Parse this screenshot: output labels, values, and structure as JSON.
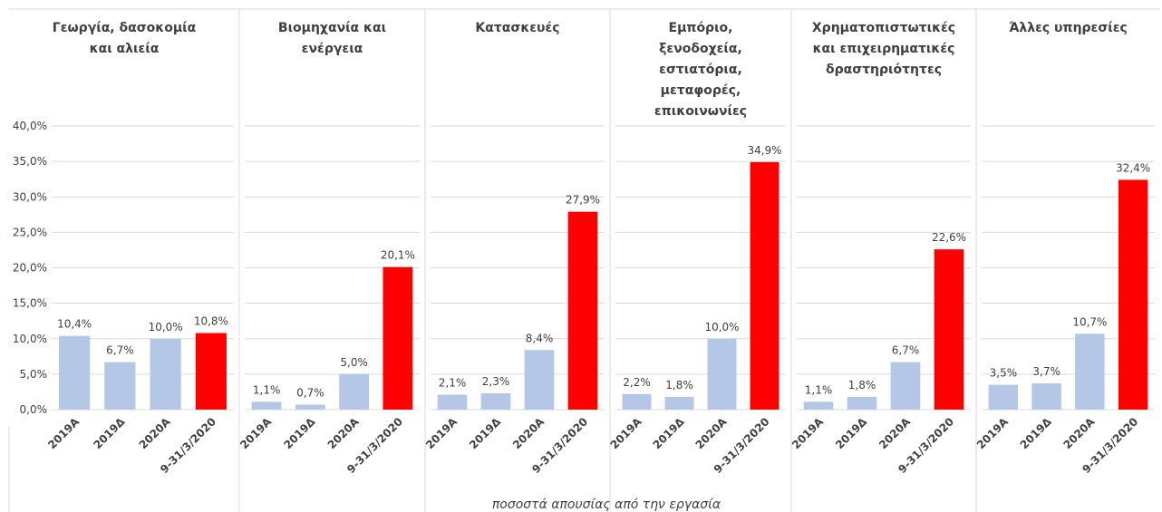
{
  "chart_data": {
    "type": "bar",
    "x_label": "ποσοστά απουσίας από την εργασία",
    "ylim": [
      0,
      40
    ],
    "yticks": [
      {
        "value": 0,
        "label": "0,0%"
      },
      {
        "value": 5,
        "label": "5,0%"
      },
      {
        "value": 10,
        "label": "10,0%"
      },
      {
        "value": 15,
        "label": "15,0%"
      },
      {
        "value": 20,
        "label": "20,0%"
      },
      {
        "value": 25,
        "label": "25,0%"
      },
      {
        "value": 30,
        "label": "30,0%"
      },
      {
        "value": 35,
        "label": "35,0%"
      },
      {
        "value": 40,
        "label": "40,0%"
      }
    ],
    "grid": true,
    "categories": [
      "2019Α",
      "2019Δ",
      "2020Α",
      "9-31/3/2020"
    ],
    "colors": [
      "#b4c7e7",
      "#b4c7e7",
      "#b4c7e7",
      "#ff0000"
    ],
    "panels": [
      {
        "title": [
          "Γεωργία, δασοκομία",
          "και αλιεία"
        ],
        "values": [
          10.4,
          6.7,
          10.0,
          10.8
        ],
        "value_labels": [
          "10,4%",
          "6,7%",
          "10,0%",
          "10,8%"
        ]
      },
      {
        "title": [
          "Βιομηχανία και",
          "ενέργεια"
        ],
        "values": [
          1.1,
          0.7,
          5.0,
          20.1
        ],
        "value_labels": [
          "1,1%",
          "0,7%",
          "5,0%",
          "20,1%"
        ]
      },
      {
        "title": [
          "Κατασκευές"
        ],
        "values": [
          2.1,
          2.3,
          8.4,
          27.9
        ],
        "value_labels": [
          "2,1%",
          "2,3%",
          "8,4%",
          "27,9%"
        ]
      },
      {
        "title": [
          "Εμπόριο,",
          "ξενοδοχεία,",
          "εστιατόρια,",
          "μεταφορές,",
          "επικοινωνίες"
        ],
        "values": [
          2.2,
          1.8,
          10.0,
          34.9
        ],
        "value_labels": [
          "2,2%",
          "1,8%",
          "10,0%",
          "34,9%"
        ]
      },
      {
        "title": [
          "Χρηματοπιστωτικές",
          "και επιχειρηματικές",
          "δραστηριότητες"
        ],
        "values": [
          1.1,
          1.8,
          6.7,
          22.6
        ],
        "value_labels": [
          "1,1%",
          "1,8%",
          "6,7%",
          "22,6%"
        ]
      },
      {
        "title": [
          "Άλλες υπηρεσίες"
        ],
        "values": [
          3.5,
          3.7,
          10.7,
          32.4
        ],
        "value_labels": [
          "3,5%",
          "3,7%",
          "10,7%",
          "32,4%"
        ]
      }
    ]
  }
}
